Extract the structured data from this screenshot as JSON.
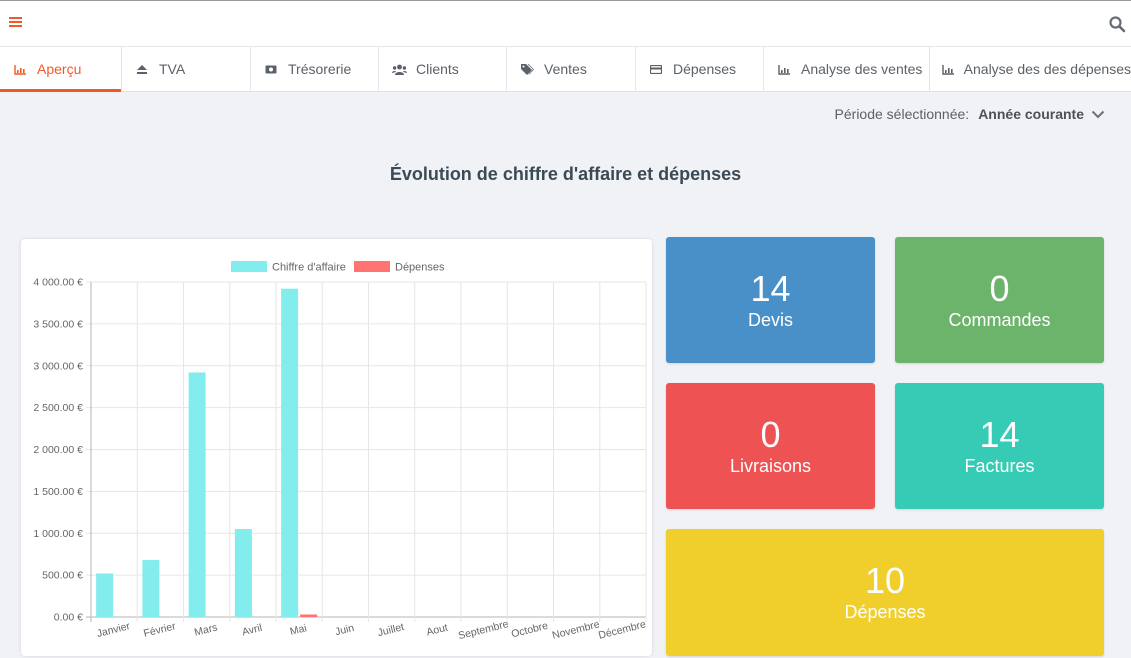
{
  "header": {
    "menu_icon": "hamburger-icon",
    "search_icon": "search-icon",
    "accent": "#ef5a2a"
  },
  "tabs": [
    {
      "label": "Aperçu",
      "icon": "line-chart-icon",
      "active": true
    },
    {
      "label": "TVA",
      "icon": "eject-icon"
    },
    {
      "label": "Trésorerie",
      "icon": "money-icon"
    },
    {
      "label": "Clients",
      "icon": "users-icon"
    },
    {
      "label": "Ventes",
      "icon": "tags-icon"
    },
    {
      "label": "Dépenses",
      "icon": "credit-card-icon"
    },
    {
      "label": "Analyse des ventes",
      "icon": "line-chart-icon"
    },
    {
      "label": "Analyse des des dépenses",
      "icon": "line-chart-icon"
    }
  ],
  "period": {
    "label": "Période sélectionnée:",
    "value": "Année courante"
  },
  "section_title": "Évolution de chiffre d'affaire et dépenses",
  "stats": [
    {
      "value": "14",
      "label": "Devis",
      "color": "#4a90c8"
    },
    {
      "value": "0",
      "label": "Commandes",
      "color": "#6cb36b"
    },
    {
      "value": "0",
      "label": "Livraisons",
      "color": "#ef5253"
    },
    {
      "value": "14",
      "label": "Factures",
      "color": "#35cbb5"
    },
    {
      "value": "10",
      "label": "Dépenses",
      "color": "#f0cf2c"
    }
  ],
  "chart_data": {
    "type": "bar",
    "categories": [
      "Janvier",
      "Février",
      "Mars",
      "Avril",
      "Mai",
      "Juin",
      "Juillet",
      "Aout",
      "Septembre",
      "Octobre",
      "Novembre",
      "Décembre"
    ],
    "series": [
      {
        "name": "Chiffre d'affaire",
        "color": "#83ecec",
        "values": [
          520,
          680,
          2920,
          1050,
          3920,
          0,
          0,
          0,
          0,
          0,
          0,
          0
        ]
      },
      {
        "name": "Dépenses",
        "color": "#ff7373",
        "values": [
          0,
          0,
          0,
          0,
          30,
          0,
          0,
          0,
          0,
          0,
          0,
          0
        ]
      }
    ],
    "ylim": [
      0,
      4000
    ],
    "yticks": [
      "0.00 €",
      "500.00 €",
      "1 000.00 €",
      "1 500.00 €",
      "2 000.00 €",
      "2 500.00 €",
      "3 000.00 €",
      "3 500.00 €",
      "4 000.00 €"
    ],
    "ytick_values": [
      0,
      500,
      1000,
      1500,
      2000,
      2500,
      3000,
      3500,
      4000
    ],
    "legend": "top",
    "grid": true
  }
}
